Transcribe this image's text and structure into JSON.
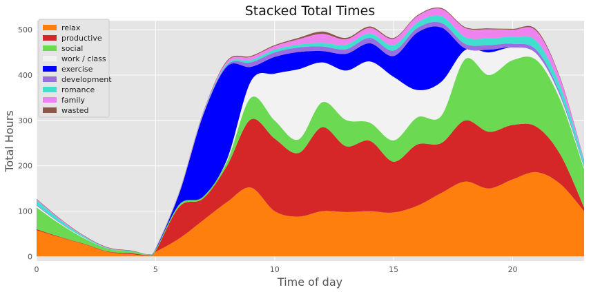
{
  "chart_data": {
    "type": "area",
    "title": "Stacked Total Times",
    "xlabel": "Time of day",
    "ylabel": "Total Hours",
    "xlim": [
      0,
      23
    ],
    "ylim": [
      -10,
      520
    ],
    "xticks": [
      0,
      5,
      10,
      15,
      20
    ],
    "yticks": [
      0,
      100,
      200,
      300,
      400,
      500
    ],
    "grid": true,
    "legend_position": "top-left",
    "x": [
      0,
      1,
      2,
      3,
      4,
      4.7,
      5,
      6,
      7,
      8,
      9,
      10,
      11,
      12,
      13,
      14,
      15,
      16,
      17,
      18,
      19,
      20,
      21,
      22,
      23
    ],
    "series": [
      {
        "name": "relax",
        "color": "#ff7f0e",
        "values": [
          58,
          42,
          27,
          10,
          5,
          2,
          10,
          40,
          80,
          120,
          152,
          100,
          88,
          100,
          98,
          100,
          97,
          112,
          140,
          165,
          150,
          170,
          186,
          160,
          100
        ]
      },
      {
        "name": "productive",
        "color": "#d62728",
        "values": [
          2,
          1,
          1,
          1,
          2,
          1,
          2,
          70,
          48,
          80,
          150,
          160,
          140,
          185,
          145,
          155,
          112,
          135,
          110,
          135,
          125,
          120,
          100,
          65,
          8
        ]
      },
      {
        "name": "social",
        "color": "#6bd952",
        "values": [
          48,
          28,
          12,
          6,
          4,
          2,
          3,
          5,
          4,
          10,
          48,
          40,
          30,
          55,
          58,
          40,
          47,
          60,
          60,
          135,
          125,
          143,
          147,
          120,
          85
        ]
      },
      {
        "name": "work / class",
        "color": "#f2f2f2",
        "values": [
          4,
          2,
          1,
          0,
          0,
          0,
          0,
          0,
          0,
          4,
          36,
          103,
          155,
          88,
          109,
          135,
          140,
          60,
          75,
          20,
          50,
          28,
          14,
          8,
          4
        ]
      },
      {
        "name": "exercise",
        "color": "#0000ff",
        "values": [
          0,
          0,
          0,
          0,
          0,
          0,
          1,
          25,
          180,
          205,
          32,
          37,
          38,
          25,
          37,
          40,
          46,
          127,
          120,
          4,
          6,
          0,
          0,
          0,
          0
        ]
      },
      {
        "name": "development",
        "color": "#9a6fe0",
        "values": [
          2,
          1,
          0,
          0,
          0,
          0,
          1,
          1,
          2,
          3,
          10,
          10,
          10,
          10,
          10,
          12,
          12,
          10,
          10,
          10,
          10,
          8,
          8,
          5,
          2
        ]
      },
      {
        "name": "romance",
        "color": "#40e0d0",
        "values": [
          10,
          6,
          3,
          1,
          1,
          0,
          1,
          1,
          2,
          3,
          5,
          6,
          6,
          8,
          10,
          10,
          12,
          12,
          15,
          15,
          15,
          15,
          20,
          18,
          12
        ]
      },
      {
        "name": "family",
        "color": "#ee82ee",
        "values": [
          2,
          2,
          1,
          1,
          0,
          0,
          1,
          1,
          2,
          5,
          7,
          8,
          12,
          20,
          12,
          12,
          14,
          14,
          16,
          20,
          20,
          16,
          22,
          16,
          2
        ]
      },
      {
        "name": "wasted",
        "color": "#8c564b",
        "values": [
          1,
          1,
          1,
          1,
          1,
          0,
          0,
          1,
          1,
          2,
          2,
          2,
          3,
          5,
          3,
          3,
          2,
          2,
          2,
          2,
          2,
          2,
          3,
          2,
          1
        ]
      }
    ]
  }
}
